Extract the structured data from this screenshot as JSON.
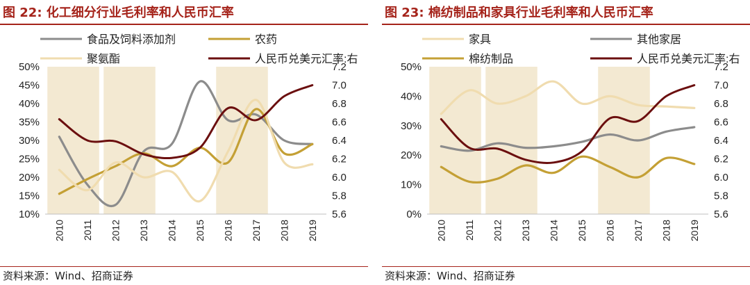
{
  "chart_data": [
    {
      "type": "line",
      "title": "图 22: 化工细分行业毛利率和人民币汇率",
      "source": "资料来源：Wind、招商证券",
      "x": [
        "2010",
        "2011",
        "2012",
        "2013",
        "2014",
        "2015",
        "2016",
        "2017",
        "2018",
        "2019"
      ],
      "yticks_left": [
        "50%",
        "45%",
        "40%",
        "35%",
        "30%",
        "25%",
        "20%",
        "15%",
        "10%"
      ],
      "yticks_right": [
        "7.2",
        "7.0",
        "6.8",
        "6.6",
        "6.4",
        "6.2",
        "6.0",
        "5.8",
        "5.6"
      ],
      "ylim_left": [
        10,
        50
      ],
      "ylim_right": [
        5.6,
        7.2
      ],
      "grid": false,
      "shaded_periods": [
        [
          "2010",
          "2011"
        ],
        [
          "2012",
          "2013"
        ],
        [
          "2016",
          "2017"
        ]
      ],
      "legend": [
        "食品及饲料添加剂",
        "农药",
        "聚氨酯",
        "人民币兑美元汇率:右"
      ],
      "series": [
        {
          "name": "食品及饲料添加剂",
          "axis": "left",
          "color": "#8c8c8c",
          "values": [
            31,
            18,
            12.5,
            27,
            29,
            46,
            35.5,
            37,
            30,
            29
          ]
        },
        {
          "name": "农药",
          "axis": "left",
          "color": "#c4a035",
          "values": [
            15.5,
            19.5,
            23,
            26.5,
            23,
            28,
            24,
            38.5,
            26.5,
            29
          ]
        },
        {
          "name": "聚氨酯",
          "axis": "left",
          "color": "#f0dcaf",
          "values": [
            22,
            16.5,
            24,
            20,
            21.5,
            13.5,
            27,
            41,
            24,
            23.5
          ]
        },
        {
          "name": "人民币兑美元汇率:右",
          "axis": "right",
          "color": "#6b0f0f",
          "values": [
            6.63,
            6.4,
            6.39,
            6.25,
            6.21,
            6.32,
            6.75,
            6.62,
            6.88,
            7.0
          ]
        }
      ]
    },
    {
      "type": "line",
      "title": "图 23: 棉纺制品和家具行业毛利率和人民币汇率",
      "source": "资料来源：Wind、招商证券",
      "x": [
        "2010",
        "2011",
        "2012",
        "2013",
        "2014",
        "2015",
        "2016",
        "2017",
        "2018",
        "2019"
      ],
      "yticks_left": [
        "50%",
        "40%",
        "30%",
        "20%",
        "10%",
        "0%"
      ],
      "yticks_right": [
        "7.2",
        "7.0",
        "6.8",
        "6.6",
        "6.4",
        "6.2",
        "6.0",
        "5.8",
        "5.6"
      ],
      "ylim_left": [
        0,
        50
      ],
      "ylim_right": [
        5.6,
        7.2
      ],
      "grid": false,
      "shaded_periods": [
        [
          "2010",
          "2011"
        ],
        [
          "2012",
          "2013"
        ],
        [
          "2016",
          "2017"
        ]
      ],
      "legend": [
        "家具",
        "其他家居",
        "棉纺制品",
        "人民币兑美元汇率:右"
      ],
      "series": [
        {
          "name": "家具",
          "axis": "left",
          "color": "#f0dcaf",
          "values": [
            34,
            42,
            37.5,
            40,
            45,
            37.5,
            40,
            37,
            36.5,
            36
          ]
        },
        {
          "name": "其他家居",
          "axis": "left",
          "color": "#8c8c8c",
          "values": [
            23,
            21.5,
            24,
            22.5,
            23,
            24.5,
            27,
            25,
            28,
            29.5
          ]
        },
        {
          "name": "棉纺制品",
          "axis": "left",
          "color": "#c4a035",
          "values": [
            16,
            11,
            12,
            16.5,
            14,
            19.5,
            16,
            12.5,
            19,
            17
          ]
        },
        {
          "name": "人民币兑美元汇率:右",
          "axis": "right",
          "color": "#6b0f0f",
          "values": [
            6.63,
            6.32,
            6.31,
            6.19,
            6.16,
            6.28,
            6.64,
            6.61,
            6.88,
            7.0
          ]
        }
      ]
    }
  ]
}
